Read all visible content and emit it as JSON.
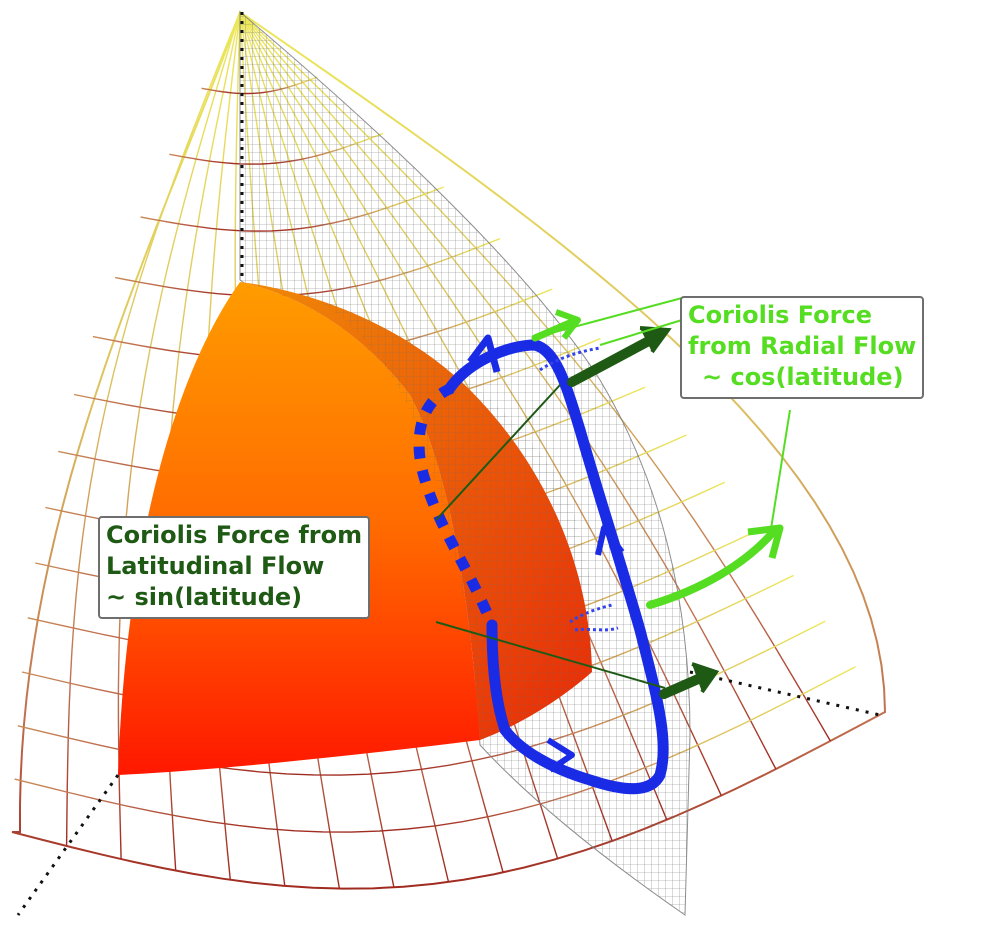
{
  "labels": {
    "radial": {
      "line1": "Coriolis Force",
      "line2": "from Radial Flow",
      "line3": "~ cos(latitude)"
    },
    "latitudinal": {
      "line1": "Coriolis Force from",
      "line2": "Latitudinal Flow",
      "line3": "~ sin(latitude)"
    }
  },
  "colors": {
    "radial_force": "#55dd22",
    "latitudinal_force": "#1e5a14",
    "circulation": "#1a2be6",
    "core_top": "#ff9a00",
    "core_bottom": "#ff1a00",
    "grid_top": "#e8e060",
    "grid_bottom": "#a03020"
  }
}
